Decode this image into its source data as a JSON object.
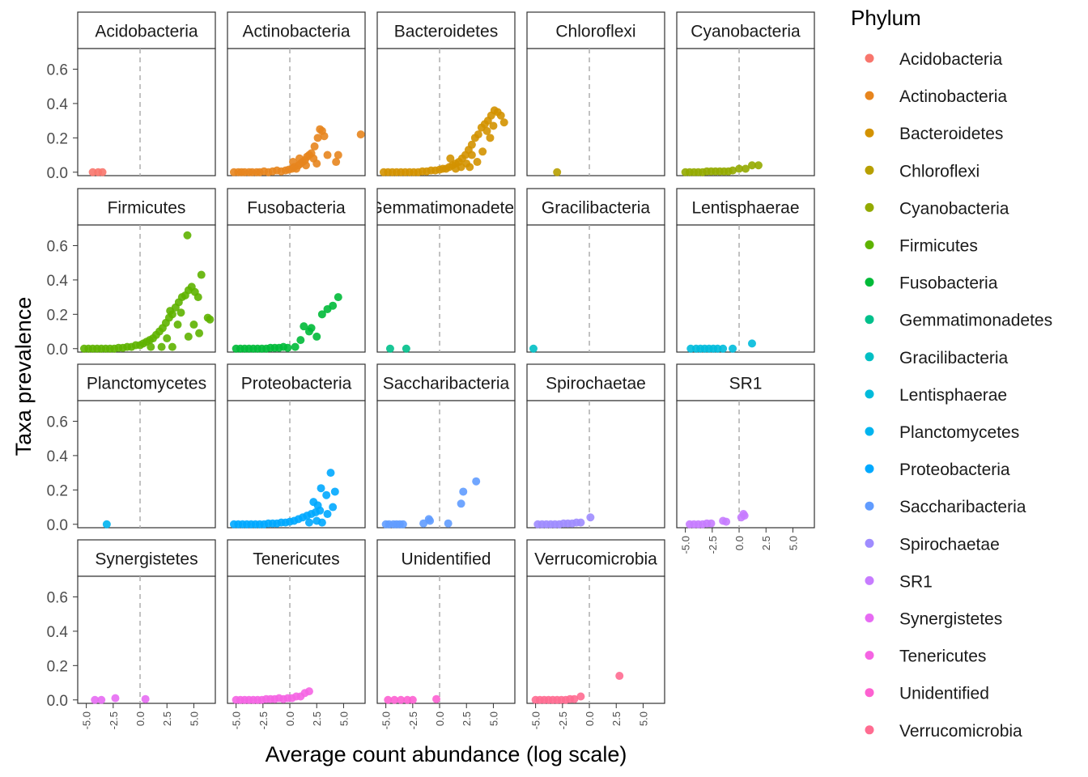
{
  "chart_data": {
    "type": "scatter",
    "facet_by": "Phylum",
    "xlabel": "Average count abundance (log scale)",
    "ylabel": "Taxa prevalence",
    "xlim": [
      -5.8,
      7
    ],
    "ylim": [
      -0.02,
      0.72
    ],
    "x_ticks": [
      "-5.0",
      "-2.5",
      "0.0",
      "2.5",
      "5.0"
    ],
    "x_tick_values": [
      -5,
      -2.5,
      0,
      2.5,
      5
    ],
    "y_ticks": [
      "0.0",
      "0.2",
      "0.4",
      "0.6"
    ],
    "y_tick_values": [
      0,
      0.2,
      0.4,
      0.6
    ],
    "reference_line_x": 0,
    "legend": {
      "title": "Phylum",
      "position": "right"
    },
    "series": [
      {
        "name": "Acidobacteria",
        "color": "#F8766D",
        "points": [
          [
            -4.4,
            0
          ],
          [
            -3.9,
            0
          ],
          [
            -3.5,
            0
          ]
        ]
      },
      {
        "name": "Actinobacteria",
        "color": "#E7851E",
        "points": [
          [
            -5.2,
            0
          ],
          [
            -4.8,
            0
          ],
          [
            -4.5,
            0
          ],
          [
            -4.2,
            0
          ],
          [
            -3.8,
            0
          ],
          [
            -3.5,
            0
          ],
          [
            -3.1,
            0
          ],
          [
            -2.8,
            0
          ],
          [
            -2.4,
            0.005
          ],
          [
            -2.0,
            0
          ],
          [
            -1.6,
            0.005
          ],
          [
            -1.2,
            0.01
          ],
          [
            -0.8,
            0.005
          ],
          [
            -0.4,
            0.01
          ],
          [
            -0.1,
            0.015
          ],
          [
            0.2,
            0.02
          ],
          [
            0.4,
            0.03
          ],
          [
            0.6,
            0.02
          ],
          [
            0.8,
            0.04
          ],
          [
            1.0,
            0.05
          ],
          [
            1.2,
            0.06
          ],
          [
            1.4,
            0.07
          ],
          [
            1.6,
            0.09
          ],
          [
            1.8,
            0.1
          ],
          [
            2.0,
            0.11
          ],
          [
            2.2,
            0.08
          ],
          [
            1.5,
            0.04
          ],
          [
            0.9,
            0.08
          ],
          [
            0.3,
            0.06
          ],
          [
            2.6,
            0.2
          ],
          [
            2.8,
            0.25
          ],
          [
            3.0,
            0.24
          ],
          [
            3.2,
            0.21
          ],
          [
            2.5,
            0.05
          ],
          [
            2.3,
            0.15
          ],
          [
            3.5,
            0.1
          ],
          [
            4.5,
            0.1
          ],
          [
            4.3,
            0.06
          ],
          [
            6.6,
            0.22
          ]
        ]
      },
      {
        "name": "Bacteroidetes",
        "color": "#D39200",
        "points": [
          [
            -5.2,
            0
          ],
          [
            -4.8,
            0
          ],
          [
            -4.4,
            0
          ],
          [
            -4.0,
            0
          ],
          [
            -3.6,
            0
          ],
          [
            -3.2,
            0
          ],
          [
            -2.8,
            0
          ],
          [
            -2.4,
            0
          ],
          [
            -2.0,
            0
          ],
          [
            -1.6,
            0.005
          ],
          [
            -1.2,
            0.005
          ],
          [
            -0.8,
            0.01
          ],
          [
            -0.4,
            0.01
          ],
          [
            0,
            0.015
          ],
          [
            0.3,
            0.02
          ],
          [
            0.6,
            0.02
          ],
          [
            0.9,
            0.03
          ],
          [
            1.2,
            0.04
          ],
          [
            1.5,
            0.05
          ],
          [
            1.8,
            0.06
          ],
          [
            2.1,
            0.08
          ],
          [
            2.4,
            0.1
          ],
          [
            2.7,
            0.13
          ],
          [
            3.0,
            0.16
          ],
          [
            3.3,
            0.2
          ],
          [
            3.6,
            0.22
          ],
          [
            3.9,
            0.26
          ],
          [
            4.2,
            0.28
          ],
          [
            4.5,
            0.3
          ],
          [
            4.8,
            0.33
          ],
          [
            5.1,
            0.36
          ],
          [
            5.4,
            0.35
          ],
          [
            5.7,
            0.33
          ],
          [
            6.0,
            0.29
          ],
          [
            5.0,
            0.27
          ],
          [
            4.4,
            0.24
          ],
          [
            3.0,
            0.1
          ],
          [
            2.5,
            0.05
          ],
          [
            2.0,
            0.03
          ],
          [
            1.5,
            0.02
          ],
          [
            3.5,
            0.06
          ],
          [
            4.0,
            0.12
          ],
          [
            1.0,
            0.08
          ],
          [
            2.8,
            0.03
          ],
          [
            4.7,
            0.2
          ]
        ]
      },
      {
        "name": "Chloroflexi",
        "color": "#B79F00",
        "points": [
          [
            -3.0,
            0
          ]
        ]
      },
      {
        "name": "Cyanobacteria",
        "color": "#93AA00",
        "points": [
          [
            -5.0,
            0
          ],
          [
            -4.6,
            0
          ],
          [
            -4.2,
            0
          ],
          [
            -3.8,
            0
          ],
          [
            -3.4,
            0
          ],
          [
            -3.0,
            0.005
          ],
          [
            -2.6,
            0.005
          ],
          [
            -2.2,
            0.005
          ],
          [
            -1.8,
            0.005
          ],
          [
            -1.4,
            0.005
          ],
          [
            -1.0,
            0.005
          ],
          [
            -0.6,
            0.01
          ],
          [
            0,
            0.02
          ],
          [
            0.6,
            0.02
          ],
          [
            1.2,
            0.04
          ],
          [
            1.8,
            0.04
          ]
        ]
      },
      {
        "name": "Firmicutes",
        "color": "#5EB300",
        "points": [
          [
            -5.2,
            0
          ],
          [
            -4.8,
            0
          ],
          [
            -4.4,
            0
          ],
          [
            -4.0,
            0
          ],
          [
            -3.6,
            0
          ],
          [
            -3.2,
            0
          ],
          [
            -2.8,
            0
          ],
          [
            -2.4,
            0
          ],
          [
            -2.0,
            0.005
          ],
          [
            -1.6,
            0.005
          ],
          [
            -1.2,
            0.01
          ],
          [
            -0.8,
            0.01
          ],
          [
            -0.4,
            0.02
          ],
          [
            0,
            0.02
          ],
          [
            0.3,
            0.03
          ],
          [
            0.6,
            0.04
          ],
          [
            0.9,
            0.05
          ],
          [
            1.2,
            0.06
          ],
          [
            1.5,
            0.08
          ],
          [
            1.8,
            0.1
          ],
          [
            2.1,
            0.12
          ],
          [
            2.4,
            0.15
          ],
          [
            2.7,
            0.18
          ],
          [
            3.0,
            0.2
          ],
          [
            3.3,
            0.24
          ],
          [
            3.6,
            0.27
          ],
          [
            3.9,
            0.3
          ],
          [
            4.2,
            0.31
          ],
          [
            4.5,
            0.34
          ],
          [
            4.8,
            0.36
          ],
          [
            5.1,
            0.33
          ],
          [
            5.4,
            0.3
          ],
          [
            5.7,
            0.43
          ],
          [
            4.4,
            0.66
          ],
          [
            5.0,
            0.14
          ],
          [
            4.5,
            0.07
          ],
          [
            5.5,
            0.09
          ],
          [
            6.3,
            0.18
          ],
          [
            6.5,
            0.17
          ],
          [
            3.0,
            0.01
          ],
          [
            2.5,
            0.06
          ],
          [
            2.0,
            0.01
          ],
          [
            1.0,
            0.01
          ],
          [
            3.5,
            0.14
          ],
          [
            2.8,
            0.22
          ],
          [
            3.8,
            0.21
          ]
        ]
      },
      {
        "name": "Fusobacteria",
        "color": "#00BA38",
        "points": [
          [
            -5.0,
            0
          ],
          [
            -4.6,
            0
          ],
          [
            -4.2,
            0
          ],
          [
            -3.8,
            0
          ],
          [
            -3.4,
            0
          ],
          [
            -3.0,
            0
          ],
          [
            -2.6,
            0
          ],
          [
            -2.2,
            0
          ],
          [
            -1.8,
            0.005
          ],
          [
            -1.4,
            0.005
          ],
          [
            -1.0,
            0.005
          ],
          [
            -0.6,
            0.01
          ],
          [
            -0.2,
            0.005
          ],
          [
            0.5,
            0.01
          ],
          [
            1.0,
            0.05
          ],
          [
            1.3,
            0.13
          ],
          [
            1.8,
            0.1
          ],
          [
            2.0,
            0.12
          ],
          [
            2.5,
            0.07
          ],
          [
            3.0,
            0.2
          ],
          [
            3.5,
            0.23
          ],
          [
            4.0,
            0.25
          ],
          [
            4.5,
            0.3
          ]
        ]
      },
      {
        "name": "Gemmatimonadetes",
        "color": "#00C08B",
        "points": [
          [
            -4.6,
            0
          ],
          [
            -3.1,
            0
          ]
        ]
      },
      {
        "name": "Gracilibacteria",
        "color": "#00BFC4",
        "points": [
          [
            -5.2,
            0
          ]
        ]
      },
      {
        "name": "Lentisphaerae",
        "color": "#00BBDB",
        "points": [
          [
            -4.5,
            0
          ],
          [
            -4.0,
            0
          ],
          [
            -3.6,
            0
          ],
          [
            -3.2,
            0
          ],
          [
            -2.8,
            0
          ],
          [
            -2.4,
            0
          ],
          [
            -2.0,
            0
          ],
          [
            -1.5,
            0
          ],
          [
            -0.6,
            0
          ],
          [
            1.2,
            0.03
          ]
        ]
      },
      {
        "name": "Planctomycetes",
        "color": "#00B4EF",
        "points": [
          [
            -3.1,
            0
          ]
        ]
      },
      {
        "name": "Proteobacteria",
        "color": "#00A9FF",
        "points": [
          [
            -5.2,
            0
          ],
          [
            -4.8,
            0
          ],
          [
            -4.4,
            0
          ],
          [
            -4.0,
            0
          ],
          [
            -3.6,
            0
          ],
          [
            -3.2,
            0
          ],
          [
            -2.8,
            0
          ],
          [
            -2.4,
            0
          ],
          [
            -2.0,
            0.005
          ],
          [
            -1.6,
            0.005
          ],
          [
            -1.2,
            0.005
          ],
          [
            -0.8,
            0.01
          ],
          [
            -0.4,
            0.01
          ],
          [
            0,
            0.015
          ],
          [
            0.4,
            0.02
          ],
          [
            0.8,
            0.03
          ],
          [
            1.2,
            0.04
          ],
          [
            1.6,
            0.05
          ],
          [
            2.0,
            0.06
          ],
          [
            2.4,
            0.07
          ],
          [
            2.8,
            0.08
          ],
          [
            2.2,
            0.13
          ],
          [
            2.6,
            0.11
          ],
          [
            2.9,
            0.21
          ],
          [
            3.4,
            0.17
          ],
          [
            3.8,
            0.3
          ],
          [
            4.2,
            0.19
          ],
          [
            3.5,
            0.06
          ],
          [
            3.0,
            0.01
          ],
          [
            4.0,
            0.1
          ],
          [
            1.8,
            0.01
          ],
          [
            2.5,
            0.02
          ]
        ]
      },
      {
        "name": "Saccharibacteria",
        "color": "#619CFF",
        "points": [
          [
            -5.0,
            0
          ],
          [
            -4.7,
            0
          ],
          [
            -4.3,
            0
          ],
          [
            -4.0,
            0
          ],
          [
            -3.7,
            0
          ],
          [
            -3.4,
            0
          ],
          [
            -1.5,
            0.005
          ],
          [
            -1.0,
            0.03
          ],
          [
            -0.9,
            0.02
          ],
          [
            0.8,
            0.005
          ],
          [
            2.0,
            0.12
          ],
          [
            2.2,
            0.19
          ],
          [
            3.4,
            0.25
          ]
        ]
      },
      {
        "name": "Spirochaetae",
        "color": "#9F8CFF",
        "points": [
          [
            -4.8,
            0
          ],
          [
            -4.4,
            0
          ],
          [
            -4.0,
            0
          ],
          [
            -3.6,
            0
          ],
          [
            -3.2,
            0
          ],
          [
            -2.8,
            0
          ],
          [
            -2.4,
            0.005
          ],
          [
            -2.0,
            0.005
          ],
          [
            -1.6,
            0.005
          ],
          [
            -1.2,
            0.01
          ],
          [
            -0.8,
            0.01
          ],
          [
            0.1,
            0.04
          ]
        ]
      },
      {
        "name": "SR1",
        "color": "#C77CFF",
        "points": [
          [
            -4.6,
            0
          ],
          [
            -4.2,
            0
          ],
          [
            -3.8,
            0
          ],
          [
            -3.4,
            0
          ],
          [
            -3.0,
            0.005
          ],
          [
            -2.6,
            0.005
          ],
          [
            -1.5,
            0.02
          ],
          [
            -1.2,
            0.015
          ],
          [
            0.2,
            0.04
          ],
          [
            0.4,
            0.06
          ],
          [
            0.5,
            0.05
          ]
        ]
      },
      {
        "name": "Synergistetes",
        "color": "#E76BF3",
        "points": [
          [
            -4.2,
            0
          ],
          [
            -3.6,
            0
          ],
          [
            -2.3,
            0.01
          ],
          [
            0.5,
            0.005
          ]
        ]
      },
      {
        "name": "Tenericutes",
        "color": "#F564E3",
        "points": [
          [
            -5.0,
            0
          ],
          [
            -4.6,
            0
          ],
          [
            -4.2,
            0
          ],
          [
            -3.8,
            0
          ],
          [
            -3.4,
            0
          ],
          [
            -3.0,
            0
          ],
          [
            -2.6,
            0
          ],
          [
            -2.2,
            0.005
          ],
          [
            -1.8,
            0.005
          ],
          [
            -1.4,
            0.005
          ],
          [
            -1.0,
            0.01
          ],
          [
            -0.6,
            0.005
          ],
          [
            -0.2,
            0.01
          ],
          [
            0.2,
            0.01
          ],
          [
            0.6,
            0.02
          ],
          [
            1.0,
            0.02
          ],
          [
            1.4,
            0.04
          ],
          [
            1.8,
            0.05
          ]
        ]
      },
      {
        "name": "Unidentified",
        "color": "#FD61D1",
        "points": [
          [
            -4.8,
            0
          ],
          [
            -4.2,
            0
          ],
          [
            -3.6,
            0
          ],
          [
            -3.0,
            0
          ],
          [
            -2.5,
            0
          ],
          [
            -0.3,
            0.005
          ]
        ]
      },
      {
        "name": "Verrucomicrobia",
        "color": "#FF6C91",
        "points": [
          [
            -5.0,
            0
          ],
          [
            -4.6,
            0
          ],
          [
            -4.2,
            0
          ],
          [
            -3.8,
            0
          ],
          [
            -3.4,
            0
          ],
          [
            -3.0,
            0
          ],
          [
            -2.6,
            0
          ],
          [
            -2.2,
            0
          ],
          [
            -1.8,
            0.005
          ],
          [
            -1.4,
            0.005
          ],
          [
            -0.8,
            0.02
          ],
          [
            2.8,
            0.14
          ]
        ]
      }
    ]
  }
}
